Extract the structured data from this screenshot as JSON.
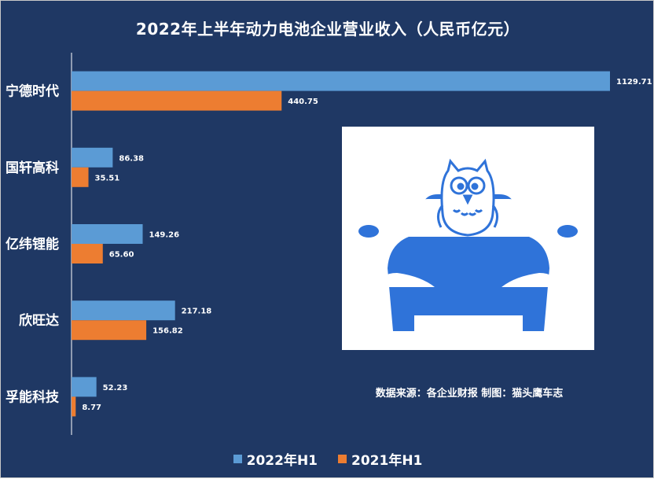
{
  "chart_data": {
    "type": "bar",
    "orientation": "horizontal",
    "title": "2022年上半年动力电池企业营业收入（人民币亿元）",
    "categories": [
      "宁德时代",
      "国轩高科",
      "亿纬锂能",
      "欣旺达",
      "孚能科技"
    ],
    "series": [
      {
        "name": "2022年H1",
        "color": "#5b9bd5",
        "values": [
          1129.71,
          86.38,
          149.26,
          217.18,
          52.23
        ],
        "labels": [
          "1129.71",
          "86.38",
          "149.26",
          "217.18",
          "52.23"
        ]
      },
      {
        "name": "2021年H1",
        "color": "#ed7d31",
        "values": [
          440.75,
          35.51,
          65.6,
          156.82,
          8.77
        ],
        "labels": [
          "440.75",
          "35.51",
          "65.60",
          "156.82",
          "8.77"
        ]
      }
    ],
    "xlim": [
      0,
      1129.71
    ],
    "grid": false,
    "legend_position": "bottom",
    "annotation": "数据来源：各企业财报  制图：猫头鹰车志"
  },
  "colors": {
    "background": "#1f3864",
    "logo_blue": "#2f73d9"
  },
  "logo": {
    "icon": "owl-on-car-logo"
  }
}
